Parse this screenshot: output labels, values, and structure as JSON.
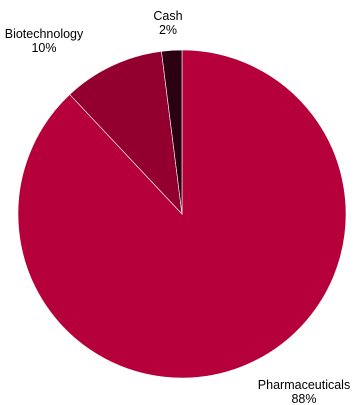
{
  "chart_data": {
    "type": "pie",
    "categories": [
      "Pharmaceuticals",
      "Biotechnology",
      "Cash"
    ],
    "values": [
      88,
      10,
      2
    ],
    "labels": [
      {
        "name": "Pharmaceuticals",
        "value_text": "88%"
      },
      {
        "name": "Biotechnology",
        "value_text": "10%"
      },
      {
        "name": "Cash",
        "value_text": "2%"
      }
    ],
    "colors": [
      "#b5003c",
      "#93002f",
      "#2b0010"
    ],
    "start_angle_deg": 0,
    "direction": "clockwise"
  }
}
